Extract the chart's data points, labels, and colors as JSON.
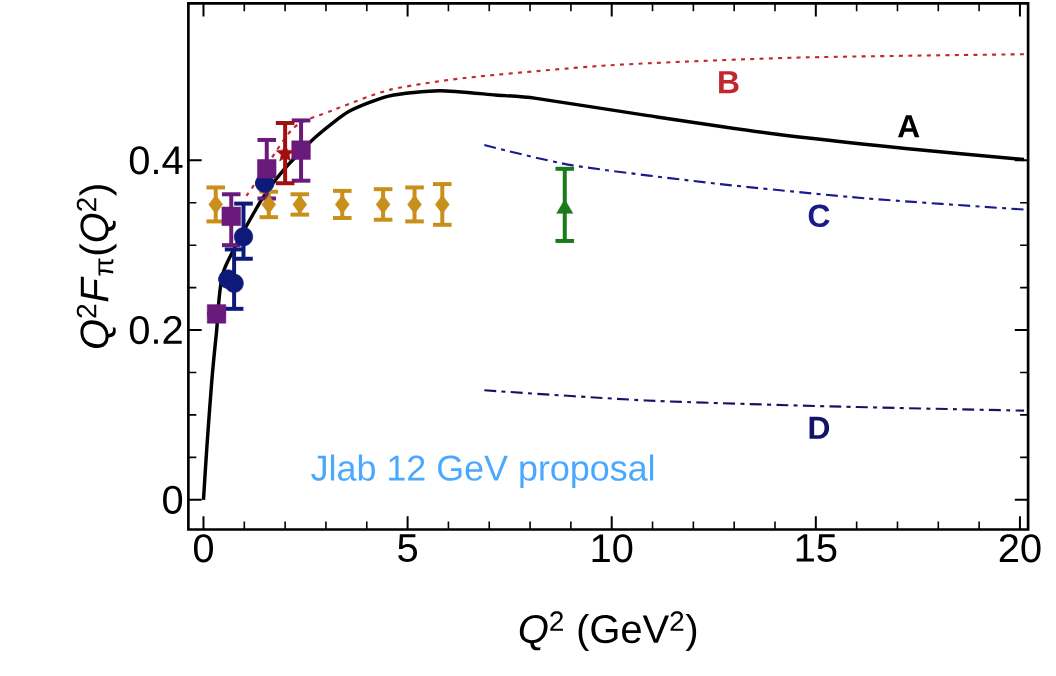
{
  "chart_data": {
    "type": "line",
    "xlabel": "*Q*$^{2}$ (GeV$^{2}$)",
    "ylabel": "*Q*$^{2}$*F*$_{π}$(*Q*$^{2}$)",
    "xlim": [
      -0.37,
      20.2
    ],
    "ylim": [
      -0.035,
      0.585
    ],
    "xticks": [
      0,
      5,
      10,
      15,
      20
    ],
    "yticks": [
      0,
      0.2,
      0.4
    ],
    "annotations": [
      "Jlab 12 GeV proposal"
    ],
    "series": [
      {
        "name": "A",
        "type": "line",
        "color": "#000000",
        "line_style": "solid",
        "marker": "none",
        "x": [
          0,
          0.08,
          0.2,
          0.32,
          0.49,
          1.39,
          1.95,
          2.76,
          3.58,
          4.56,
          5.78,
          7.15,
          8.15,
          10.85,
          14,
          17.2,
          20.1
        ],
        "values": [
          0,
          0.06,
          0.138,
          0.198,
          0.269,
          0.351,
          0.388,
          0.428,
          0.458,
          0.476,
          0.482,
          0.477,
          0.473,
          0.453,
          0.431,
          0.414,
          0.401
        ]
      },
      {
        "name": "B",
        "type": "line",
        "color": "#c0282d",
        "line_style": "dotted",
        "marker": "none",
        "x": [
          1.05,
          1.3,
          2.2,
          3.17,
          4.56,
          6.4,
          9.95,
          14.5,
          20.1
        ],
        "values": [
          0.358,
          0.375,
          0.438,
          0.459,
          0.483,
          0.497,
          0.512,
          0.521,
          0.525
        ]
      },
      {
        "name": "C",
        "type": "line",
        "color": "#1a1a8c",
        "line_style": "dashed",
        "marker": "none",
        "x": [
          6.88,
          9.05,
          12.66,
          16.27,
          20.1
        ],
        "values": [
          0.418,
          0.394,
          0.372,
          0.355,
          0.342
        ]
      },
      {
        "name": "D",
        "type": "line",
        "color": "#141466",
        "line_style": "dashed",
        "marker": "none",
        "x": [
          6.88,
          10.85,
          15.37,
          20.1
        ],
        "values": [
          0.129,
          0.117,
          0.11,
          0.105
        ]
      },
      {
        "type": "scatter",
        "color": "#c8901a",
        "marker": "diamond",
        "x": [
          0.3,
          1.6,
          2.36,
          3.4,
          4.4,
          5.17,
          5.85
        ],
        "values": [
          0.348,
          0.348,
          0.348,
          0.348,
          0.348,
          0.348,
          0.348
        ],
        "errors": [
          0.02,
          0.015,
          0.012,
          0.016,
          0.018,
          0.02,
          0.024
        ]
      },
      {
        "type": "scatter",
        "color": "#0d1a7a",
        "marker": "circle",
        "x": [
          0.6,
          0.75,
          0.98,
          1.5
        ],
        "values": [
          0.26,
          0.255,
          0.31,
          0.373
        ],
        "errors": [
          null,
          [
            0.225,
            0.295
          ],
          [
            0.284,
            0.349
          ],
          null
        ]
      },
      {
        "type": "scatter",
        "color": "#6a1a7a",
        "marker": "square",
        "x": [
          0.32,
          0.68,
          1.55,
          2.39
        ],
        "values": [
          0.219,
          0.334,
          0.39,
          0.412
        ],
        "errors": [
          null,
          [
            0.3,
            0.36
          ],
          [
            0.355,
            0.424
          ],
          [
            0.376,
            0.447
          ]
        ]
      },
      {
        "type": "scatter",
        "color": "#a01010",
        "marker": "star",
        "x": [
          2.0
        ],
        "values": [
          0.408
        ],
        "errors": [
          [
            0.373,
            0.444
          ]
        ]
      },
      {
        "type": "scatter",
        "color": "#1a7a1a",
        "marker": "triangle",
        "x": [
          8.85
        ],
        "values": [
          0.343
        ],
        "errors": [
          [
            0.305,
            0.39
          ]
        ]
      }
    ]
  }
}
